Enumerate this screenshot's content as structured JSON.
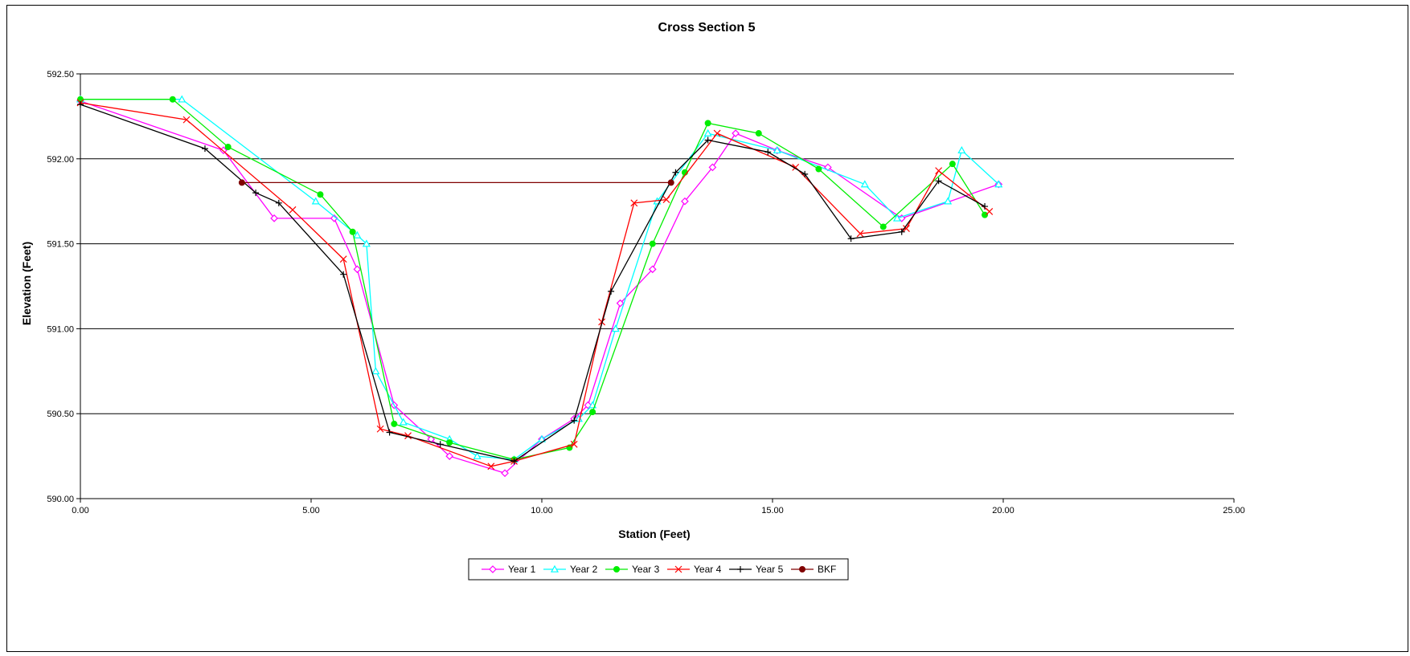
{
  "chart_data": {
    "type": "line",
    "title": "Cross Section 5",
    "xlabel": "Station (Feet)",
    "ylabel": "Elevation (Feet)",
    "xlim": [
      0,
      25
    ],
    "ylim": [
      590.0,
      592.5
    ],
    "xticks": [
      "0.00",
      "5.00",
      "10.00",
      "15.00",
      "20.00",
      "25.00"
    ],
    "yticks": [
      "590.00",
      "590.50",
      "591.00",
      "591.50",
      "592.00",
      "592.50"
    ],
    "grid": "horizontal",
    "legend_position": "bottom",
    "series": [
      {
        "name": "Year 1",
        "color": "#ff00ff",
        "marker": "diamond",
        "x": [
          0.0,
          3.1,
          4.2,
          5.5,
          6.0,
          6.8,
          7.6,
          8.0,
          9.2,
          10.0,
          10.7,
          11.0,
          11.7,
          12.4,
          13.1,
          13.7,
          14.2,
          15.1,
          16.2,
          17.8,
          19.9
        ],
        "y": [
          592.34,
          592.05,
          591.65,
          591.65,
          591.35,
          590.55,
          590.35,
          590.25,
          590.15,
          590.35,
          590.47,
          590.55,
          591.15,
          591.35,
          591.75,
          591.95,
          592.15,
          592.05,
          591.95,
          591.65,
          591.85
        ]
      },
      {
        "name": "Year 2",
        "color": "#00ffff",
        "marker": "triangle",
        "x": [
          0.0,
          2.2,
          5.1,
          6.0,
          6.2,
          6.4,
          7.0,
          8.0,
          8.6,
          9.4,
          10.0,
          10.8,
          11.1,
          11.6,
          12.5,
          13.6,
          15.1,
          17.0,
          17.7,
          18.8,
          19.1,
          19.9
        ],
        "y": [
          592.35,
          592.35,
          591.75,
          591.55,
          591.5,
          590.75,
          590.45,
          590.35,
          590.25,
          590.23,
          590.35,
          590.47,
          590.55,
          591.0,
          591.75,
          592.15,
          592.05,
          591.85,
          591.65,
          591.75,
          592.05,
          591.85
        ]
      },
      {
        "name": "Year 3",
        "color": "#00ee00",
        "marker": "circle",
        "x": [
          0.0,
          2.0,
          3.2,
          5.2,
          5.9,
          6.8,
          8.0,
          9.4,
          10.6,
          11.1,
          12.4,
          13.1,
          13.6,
          14.7,
          16.0,
          17.4,
          18.9,
          19.6
        ],
        "y": [
          592.35,
          592.35,
          592.07,
          591.79,
          591.57,
          590.44,
          590.33,
          590.23,
          590.3,
          590.51,
          591.5,
          591.92,
          592.21,
          592.15,
          591.94,
          591.6,
          591.97,
          591.67
        ]
      },
      {
        "name": "Year 4",
        "color": "#ff0000",
        "marker": "x",
        "x": [
          0.0,
          2.3,
          4.6,
          5.7,
          6.5,
          7.1,
          8.9,
          9.4,
          10.7,
          11.3,
          12.0,
          12.7,
          13.8,
          15.5,
          16.9,
          17.9,
          18.6,
          19.7
        ],
        "y": [
          592.33,
          592.23,
          591.7,
          591.41,
          590.41,
          590.37,
          590.19,
          590.22,
          590.32,
          591.04,
          591.74,
          591.76,
          592.15,
          591.95,
          591.56,
          591.59,
          591.93,
          591.69
        ]
      },
      {
        "name": "Year 5",
        "color": "#000000",
        "marker": "plus",
        "x": [
          0.0,
          2.7,
          3.8,
          4.3,
          5.7,
          6.7,
          7.8,
          9.4,
          10.7,
          11.5,
          12.9,
          13.6,
          14.9,
          15.7,
          16.7,
          17.8,
          18.6,
          19.6
        ],
        "y": [
          592.32,
          592.06,
          591.8,
          591.74,
          591.32,
          590.39,
          590.32,
          590.22,
          590.46,
          591.22,
          591.92,
          592.11,
          592.04,
          591.91,
          591.53,
          591.57,
          591.87,
          591.72
        ]
      },
      {
        "name": "BKF",
        "color": "#800000",
        "marker": "circle",
        "x": [
          3.5,
          12.8
        ],
        "y": [
          591.86,
          591.86
        ]
      }
    ]
  }
}
